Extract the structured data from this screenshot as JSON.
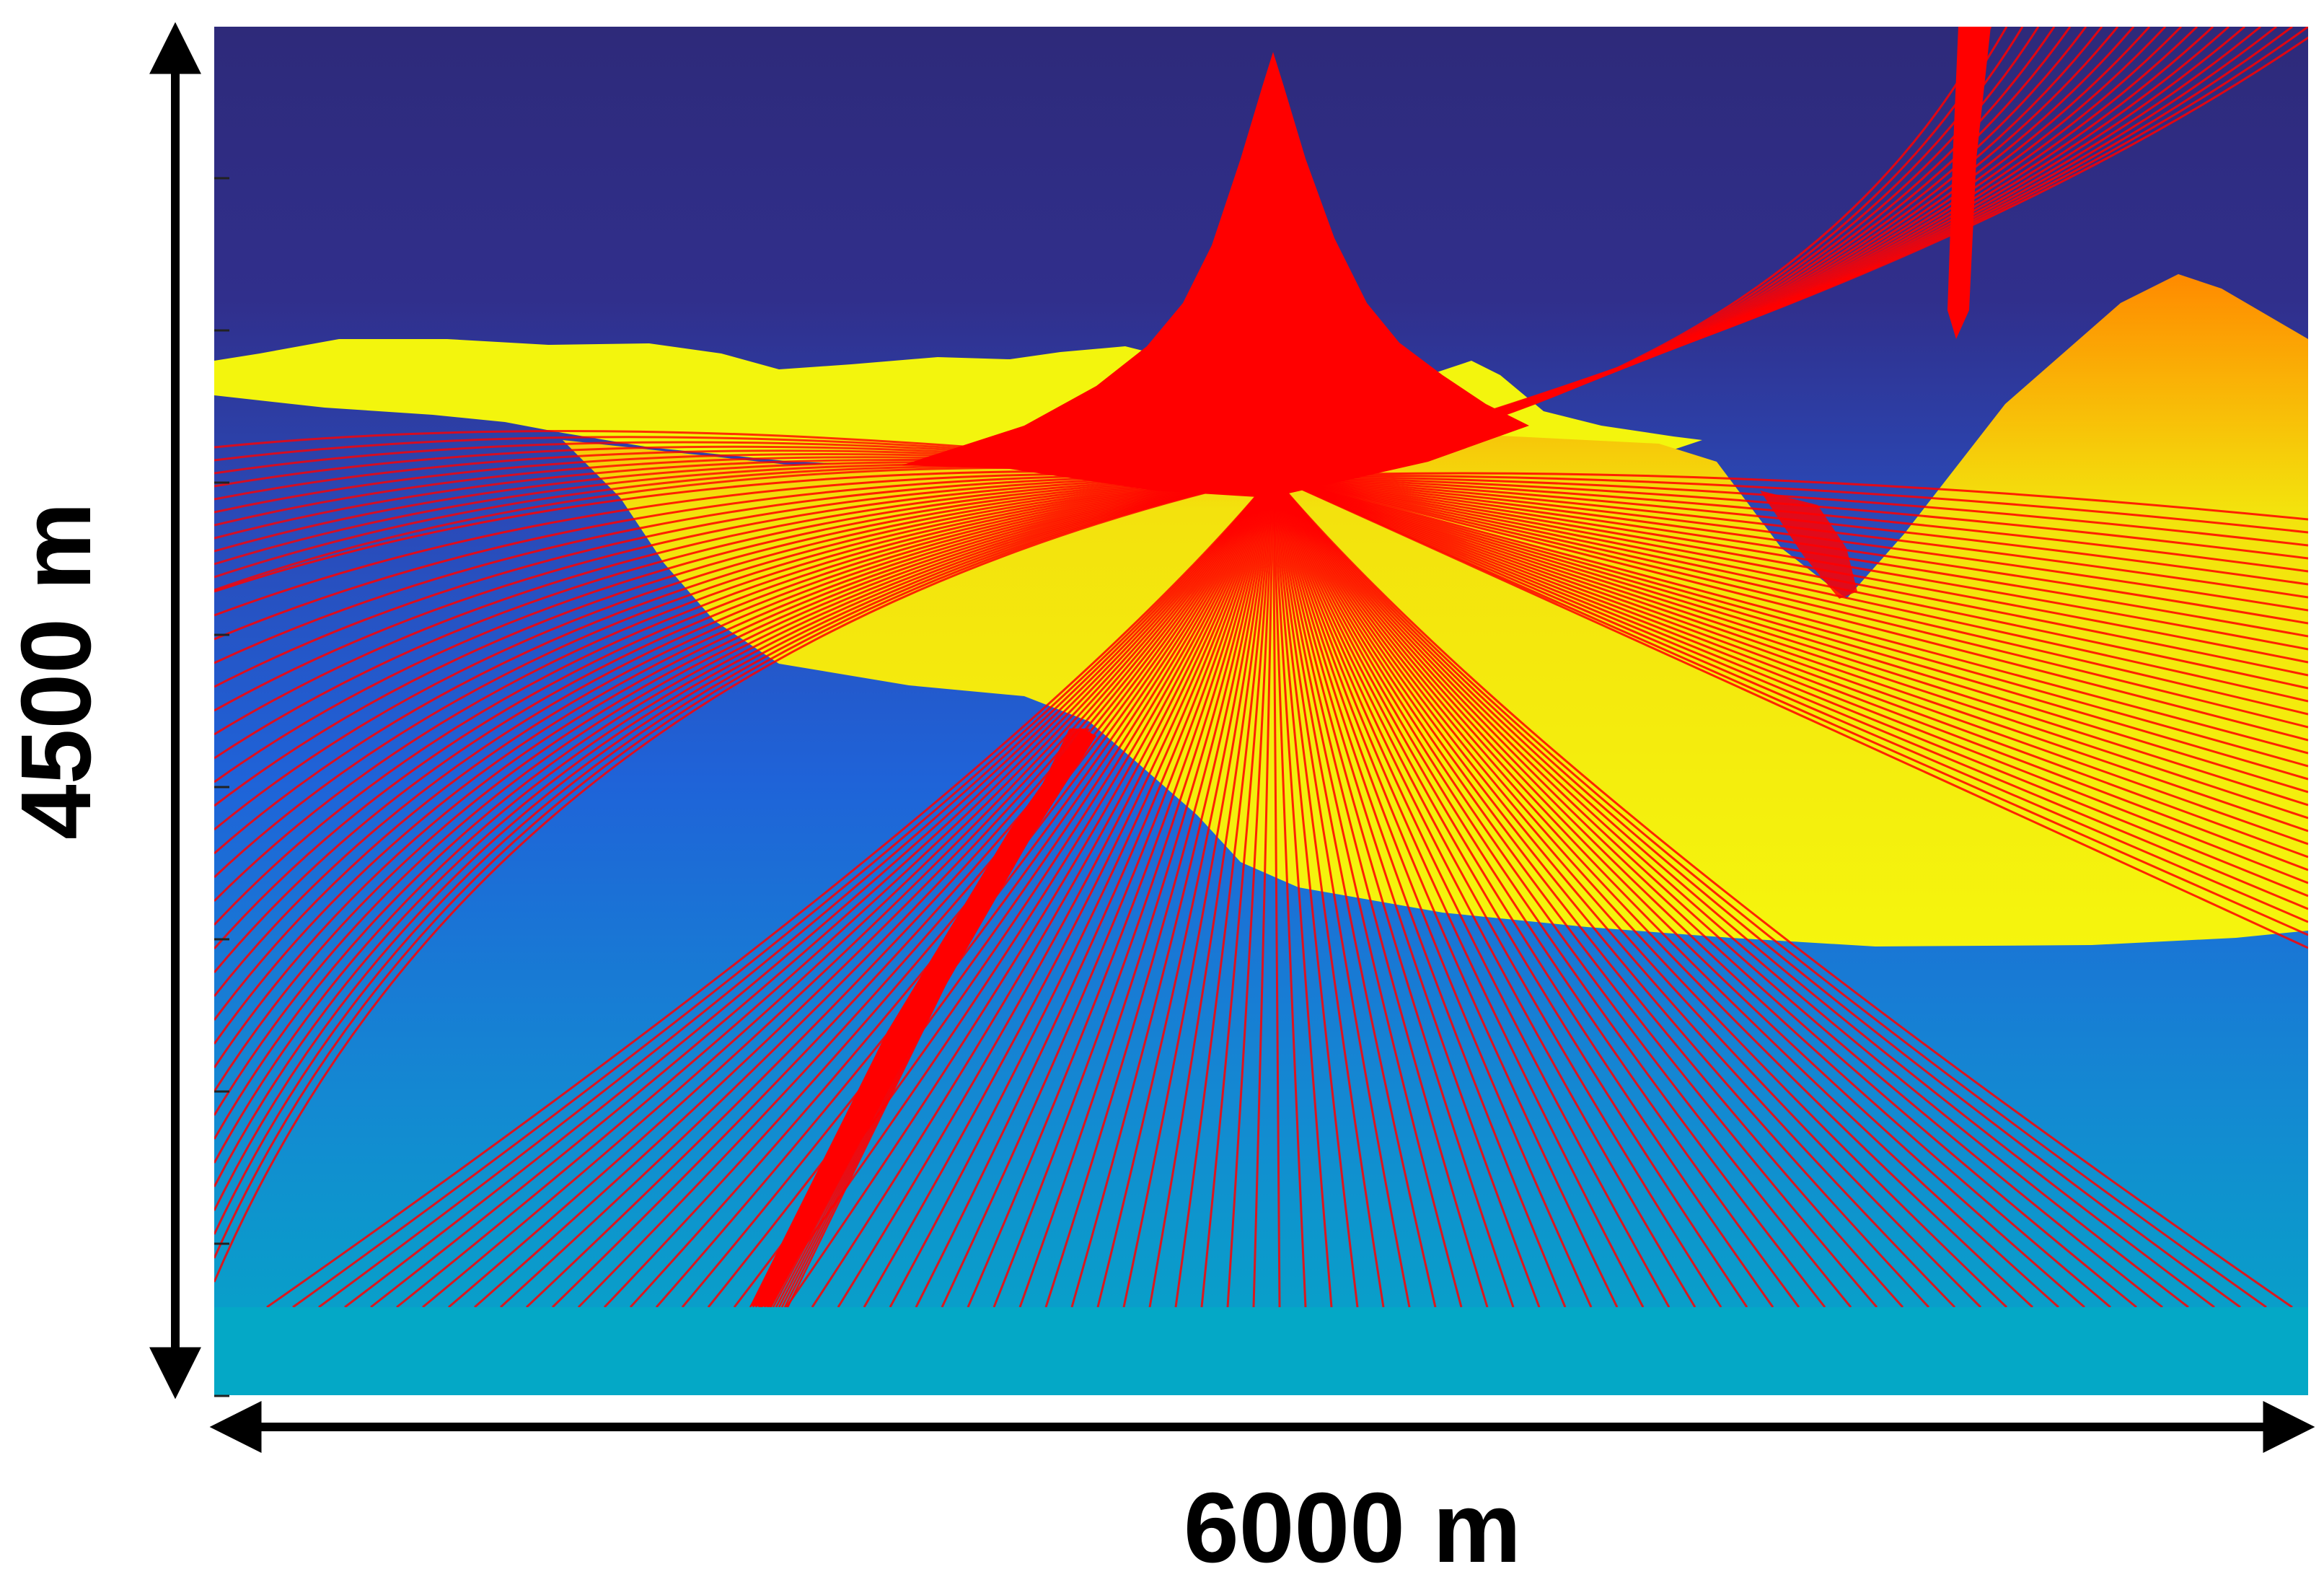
{
  "labels": {
    "width": "6000 m",
    "height": "4500 m"
  },
  "colors": {
    "ray": "#ff0000",
    "layer_fill": "#f3f50d",
    "background_top": "#2e2a7a",
    "background_bottom": "#04a8c6",
    "arrow": "#000000"
  }
}
